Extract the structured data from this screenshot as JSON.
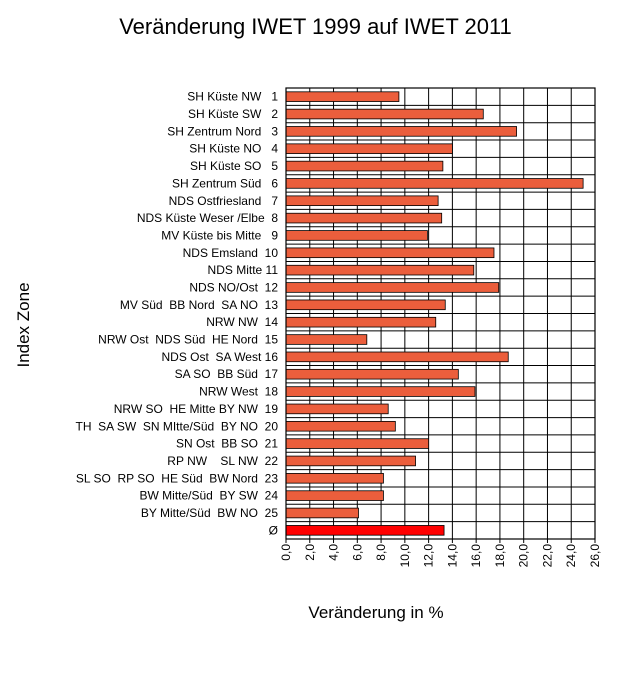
{
  "chart_data": {
    "type": "bar",
    "orientation": "horizontal",
    "title": "Veränderung IWET 1999 auf IWET 2011",
    "xlabel": "Veränderung in %",
    "ylabel": "Index Zone",
    "xlim": [
      0,
      26
    ],
    "x_ticks": [
      "0,0",
      "2,0",
      "4,0",
      "6,0",
      "8,0",
      "10,0",
      "12,0",
      "14,0",
      "16,0",
      "18,0",
      "20,0",
      "22,0",
      "24,0",
      "26,0"
    ],
    "grid": true,
    "categories": [
      "SH Küste NW   1",
      "SH Küste SW   2",
      "SH Zentrum Nord   3",
      "SH Küste NO   4",
      "SH Küste SO   5",
      "SH Zentrum Süd   6",
      "NDS Ostfriesland   7",
      "NDS Küste Weser /Elbe  8",
      "MV Küste bis Mitte   9",
      "NDS Emsland  10",
      "NDS Mitte 11",
      "NDS NO/Ost  12",
      "MV Süd  BB Nord  SA NO  13",
      "NRW NW  14",
      "NRW Ost  NDS Süd  HE Nord  15",
      "NDS Ost  SA West 16",
      "SA SO  BB Süd  17",
      "NRW West  18",
      "NRW SO  HE Mitte BY NW  19",
      "TH  SA SW  SN MItte/Süd  BY NO  20",
      "SN Ost  BB SO  21",
      "RP NW    SL NW  22",
      "SL SO  RP SO  HE Süd  BW Nord  23",
      "BW Mitte/Süd  BY SW  24",
      "BY Mitte/Süd  BW NO  25",
      "Ø"
    ],
    "values": [
      9.5,
      16.6,
      19.4,
      14.0,
      13.2,
      25.0,
      12.8,
      13.1,
      11.9,
      17.5,
      15.8,
      17.9,
      13.4,
      12.6,
      6.8,
      18.7,
      14.5,
      15.9,
      8.6,
      9.2,
      12.0,
      10.9,
      8.2,
      8.2,
      6.1,
      13.3
    ],
    "colors": {
      "bar": "#EB5E3C",
      "average_bar": "#FF0000",
      "grid": "#000000"
    }
  }
}
